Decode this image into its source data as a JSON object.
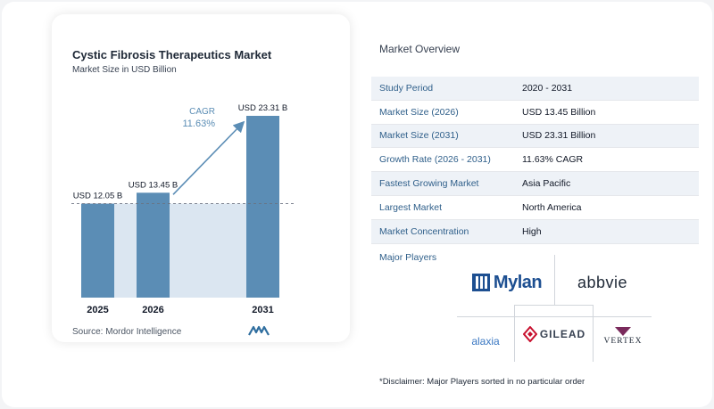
{
  "chart_data": {
    "type": "bar",
    "title": "Cystic Fibrosis Therapeutics Market",
    "subtitle": "Market Size in USD Billion",
    "categories": [
      "2025",
      "2026",
      "2031"
    ],
    "values": [
      12.05,
      13.45,
      23.31
    ],
    "data_labels": [
      "USD 12.05 B",
      "USD 13.45 B",
      "USD 23.31 B"
    ],
    "ylim": [
      0,
      23.31
    ],
    "grid": false,
    "bar_color": "#5b8db5",
    "annotation": {
      "label": "CAGR",
      "value": "11.63%"
    },
    "source": "Source:  Mordor Intelligence"
  },
  "overview": {
    "title": "Market Overview",
    "rows": [
      {
        "label": "Study Period",
        "value": "2020 - 2031"
      },
      {
        "label": "Market Size (2026)",
        "value": "USD 13.45 Billion"
      },
      {
        "label": "Market Size (2031)",
        "value": "USD 23.31 Billion"
      },
      {
        "label": "Growth Rate (2026 - 2031)",
        "value": "11.63% CAGR"
      },
      {
        "label": "Fastest Growing Market",
        "value": "Asia Pacific"
      },
      {
        "label": "Largest Market",
        "value": "North America"
      },
      {
        "label": "Market Concentration",
        "value": "High"
      }
    ]
  },
  "players": {
    "title": "Major Players",
    "logos": [
      "Mylan",
      "abbvie",
      "alaxia",
      "GILEAD",
      "VERTEX"
    ]
  },
  "disclaimer": "*Disclaimer: Major Players sorted in no particular order",
  "colors": {
    "accent": "#2f5f8a",
    "bar": "#5b8db5",
    "arrow": "#5b8db5",
    "band": "#dbe6f1"
  },
  "icons": [
    "mordor-intelligence-logo",
    "mylan-logo",
    "abbvie-logo",
    "alaxia-logo",
    "gilead-logo",
    "vertex-logo"
  ]
}
